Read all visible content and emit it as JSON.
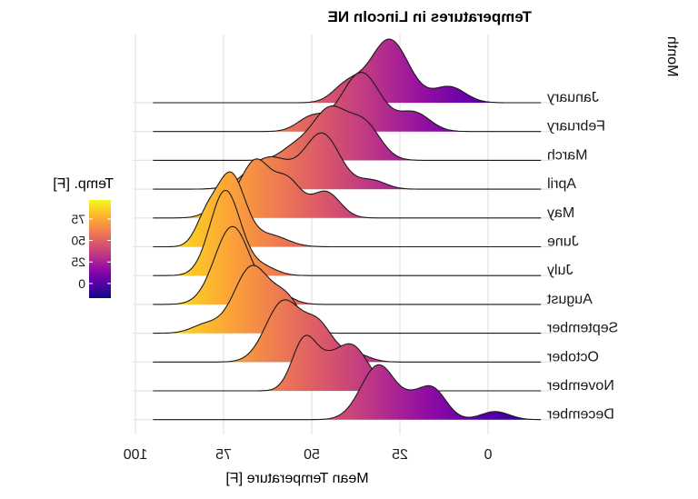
{
  "chart_data": {
    "type": "ridgeline",
    "title": "Temperatures in Lincoln NE",
    "xlabel": "Mean Temperature [F]",
    "ylabel": "Month",
    "mirrored_horizontally": true,
    "xlim": [
      -15,
      95
    ],
    "x_ticks": [
      0,
      25,
      50,
      75,
      100
    ],
    "x_tick_labels": [
      "0",
      "25",
      "50",
      "75",
      "100"
    ],
    "grid": true,
    "categories": [
      "January",
      "February",
      "March",
      "April",
      "May",
      "June",
      "July",
      "August",
      "September",
      "October",
      "November",
      "December"
    ],
    "legend": {
      "title": "Temp. [F]",
      "placement": "left",
      "ticks": [
        0,
        25,
        50,
        75
      ],
      "tick_labels": [
        "0",
        "25",
        "50",
        "75"
      ],
      "range": [
        -17,
        97
      ],
      "colormap": "plasma",
      "colors": [
        "#0d0887",
        "#41049d",
        "#6a00a8",
        "#8f0da4",
        "#b12a90",
        "#cc4778",
        "#e16462",
        "#f2844b",
        "#fca636",
        "#fcce25",
        "#f0f921"
      ]
    },
    "ridges": [
      {
        "month": "January",
        "peaks": [
          {
            "temp": 28,
            "sd": 5.5,
            "height": 2.2
          },
          {
            "temp": 40,
            "sd": 4,
            "height": 0.6
          },
          {
            "temp": 11,
            "sd": 4.5,
            "height": 0.55
          }
        ]
      },
      {
        "month": "February",
        "peaks": [
          {
            "temp": 36,
            "sd": 5.5,
            "height": 2.05
          },
          {
            "temp": 21,
            "sd": 4.5,
            "height": 0.65
          },
          {
            "temp": 50,
            "sd": 4,
            "height": 0.5
          }
        ]
      },
      {
        "month": "March",
        "peaks": [
          {
            "temp": 45,
            "sd": 5,
            "height": 1.75
          },
          {
            "temp": 35,
            "sd": 4.5,
            "height": 1.2
          },
          {
            "temp": 55,
            "sd": 4,
            "height": 0.4
          }
        ]
      },
      {
        "month": "April",
        "peaks": [
          {
            "temp": 47,
            "sd": 5,
            "height": 1.9
          },
          {
            "temp": 62,
            "sd": 6,
            "height": 1.1
          },
          {
            "temp": 33,
            "sd": 4,
            "height": 0.3
          }
        ]
      },
      {
        "month": "May",
        "peaks": [
          {
            "temp": 66,
            "sd": 4,
            "height": 1.9
          },
          {
            "temp": 57,
            "sd": 4,
            "height": 1.3
          },
          {
            "temp": 46,
            "sd": 4,
            "height": 0.9
          },
          {
            "temp": 75,
            "sd": 4,
            "height": 0.5
          }
        ]
      },
      {
        "month": "June",
        "peaks": [
          {
            "temp": 73,
            "sd": 4,
            "height": 2.5
          },
          {
            "temp": 80,
            "sd": 3,
            "height": 0.9
          },
          {
            "temp": 62,
            "sd": 5,
            "height": 0.4
          }
        ]
      },
      {
        "month": "July",
        "peaks": [
          {
            "temp": 74.5,
            "sd": 4.3,
            "height": 2.95
          },
          {
            "temp": 64,
            "sd": 4,
            "height": 0.3
          }
        ]
      },
      {
        "month": "August",
        "peaks": [
          {
            "temp": 72.5,
            "sd": 5,
            "height": 2.7
          },
          {
            "temp": 60,
            "sd": 4,
            "height": 0.4
          }
        ]
      },
      {
        "month": "September",
        "peaks": [
          {
            "temp": 67,
            "sd": 5,
            "height": 2.3
          },
          {
            "temp": 57,
            "sd": 4,
            "height": 1.1
          },
          {
            "temp": 80,
            "sd": 4,
            "height": 0.3
          }
        ]
      },
      {
        "month": "October",
        "peaks": [
          {
            "temp": 58,
            "sd": 5,
            "height": 2.1
          },
          {
            "temp": 48,
            "sd": 4,
            "height": 1.2
          },
          {
            "temp": 38,
            "sd": 4,
            "height": 0.3
          }
        ]
      },
      {
        "month": "November",
        "peaks": [
          {
            "temp": 52,
            "sd": 3.5,
            "height": 1.8
          },
          {
            "temp": 39,
            "sd": 5,
            "height": 1.6
          },
          {
            "temp": 46,
            "sd": 3,
            "height": 0.4
          }
        ]
      },
      {
        "month": "December",
        "peaks": [
          {
            "temp": 31,
            "sd": 5,
            "height": 1.9
          },
          {
            "temp": 16,
            "sd": 4,
            "height": 1.1
          },
          {
            "temp": 22,
            "sd": 3,
            "height": 0.3
          },
          {
            "temp": -2,
            "sd": 4,
            "height": 0.28
          }
        ]
      }
    ]
  }
}
